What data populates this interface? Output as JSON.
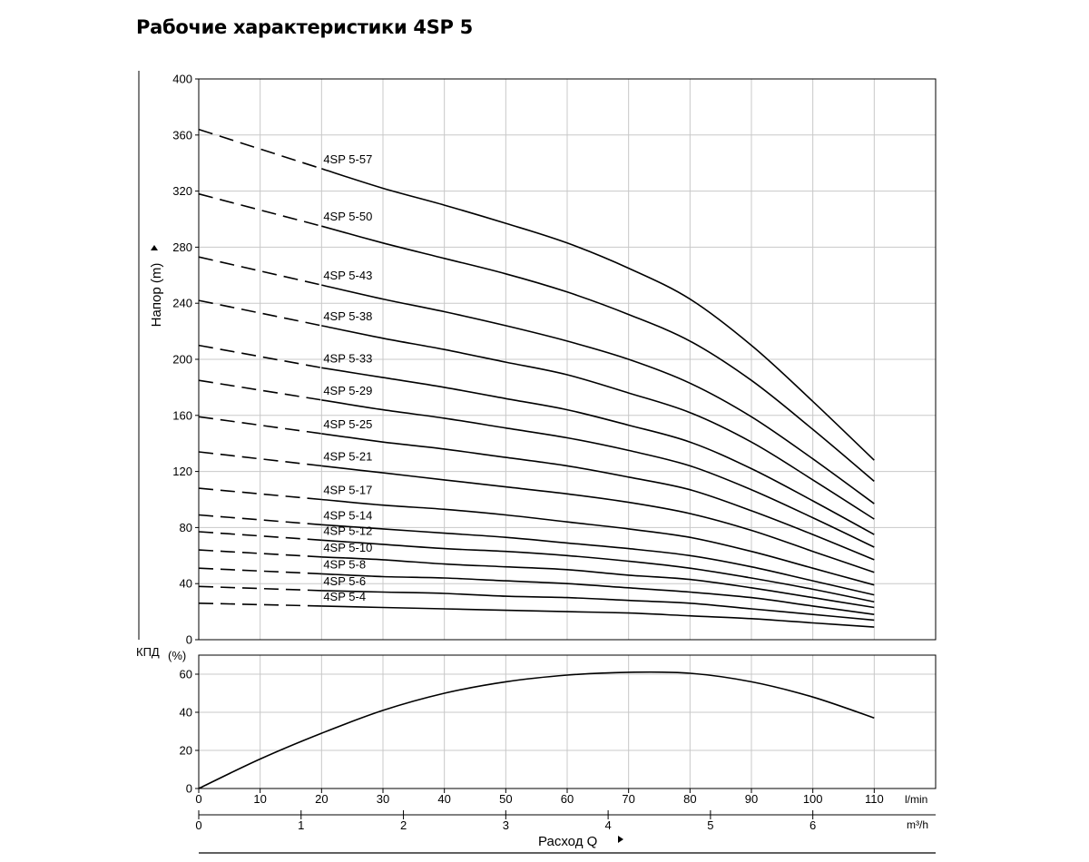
{
  "title": "Рабочие характеристики 4SP 5",
  "chart_data": [
    {
      "type": "line",
      "ylabel": "Напор (m)",
      "ylim": [
        0,
        400
      ],
      "y_ticks": [
        0,
        40,
        80,
        120,
        160,
        200,
        240,
        280,
        320,
        360,
        400
      ],
      "xlim": [
        0,
        120
      ],
      "x_grid": [
        0,
        10,
        20,
        30,
        40,
        50,
        60,
        70,
        80,
        90,
        100,
        110
      ],
      "x": [
        0,
        20,
        30,
        40,
        50,
        60,
        70,
        80,
        90,
        100,
        110
      ],
      "dashed_until_x": 20,
      "grid": true,
      "series": [
        {
          "name": "4SP 5-57",
          "values": [
            364,
            336,
            322,
            310,
            297,
            283,
            265,
            243,
            210,
            170,
            128
          ]
        },
        {
          "name": "4SP 5-50",
          "values": [
            318,
            295,
            283,
            272,
            261,
            248,
            232,
            213,
            185,
            150,
            113
          ]
        },
        {
          "name": "4SP 5-43",
          "values": [
            273,
            253,
            243,
            234,
            224,
            213,
            200,
            183,
            159,
            129,
            97
          ]
        },
        {
          "name": "4SP 5-38",
          "values": [
            242,
            224,
            215,
            207,
            198,
            189,
            176,
            162,
            141,
            114,
            86
          ]
        },
        {
          "name": "4SP 5-33",
          "values": [
            210,
            194,
            187,
            180,
            172,
            164,
            153,
            141,
            122,
            99,
            75
          ]
        },
        {
          "name": "4SP 5-29",
          "values": [
            185,
            171,
            164,
            158,
            151,
            144,
            135,
            124,
            107,
            87,
            66
          ]
        },
        {
          "name": "4SP 5-25",
          "values": [
            159,
            147,
            141,
            136,
            130,
            124,
            116,
            107,
            92,
            75,
            57
          ]
        },
        {
          "name": "4SP 5-21",
          "values": [
            134,
            124,
            119,
            114,
            109,
            104,
            98,
            90,
            78,
            63,
            48
          ]
        },
        {
          "name": "4SP 5-17",
          "values": [
            108,
            100,
            96,
            93,
            89,
            84,
            79,
            73,
            63,
            51,
            39
          ]
        },
        {
          "name": "4SP 5-14",
          "values": [
            89,
            82,
            79,
            76,
            73,
            69,
            65,
            60,
            52,
            42,
            32
          ]
        },
        {
          "name": "4SP 5-12",
          "values": [
            77,
            71,
            68,
            65,
            63,
            60,
            56,
            51,
            44,
            36,
            27
          ]
        },
        {
          "name": "4SP 5-10",
          "values": [
            64,
            59,
            57,
            54,
            52,
            50,
            46,
            43,
            37,
            30,
            23
          ]
        },
        {
          "name": "4SP 5-8",
          "values": [
            51,
            47,
            45,
            44,
            42,
            40,
            37,
            34,
            30,
            24,
            18
          ]
        },
        {
          "name": "4SP 5-6",
          "values": [
            38,
            35,
            34,
            33,
            31,
            30,
            28,
            26,
            22,
            18,
            14
          ]
        },
        {
          "name": "4SP 5-4",
          "values": [
            26,
            24,
            23,
            22,
            21,
            20,
            19,
            17,
            15,
            12,
            9
          ]
        }
      ]
    },
    {
      "type": "line",
      "ylabel": "КПД",
      "ylabel_unit": "(%)",
      "ylim": [
        0,
        70
      ],
      "y_ticks": [
        0,
        20,
        40,
        60
      ],
      "xlim": [
        0,
        120
      ],
      "x_ticks": [
        0,
        10,
        20,
        30,
        40,
        50,
        60,
        70,
        80,
        90,
        100,
        110
      ],
      "x_unit": "l/min",
      "x2_ticks": [
        0,
        1,
        2,
        3,
        4,
        5,
        6
      ],
      "x2_unit": "m³/h",
      "xlabel": "Расход Q",
      "grid": true,
      "series": [
        {
          "x": [
            0,
            10,
            20,
            30,
            40,
            50,
            60,
            70,
            80,
            90,
            100,
            110
          ],
          "values": [
            0,
            15.5,
            29,
            41,
            50,
            56,
            59.5,
            61,
            60.5,
            56,
            48,
            37
          ]
        }
      ]
    }
  ]
}
